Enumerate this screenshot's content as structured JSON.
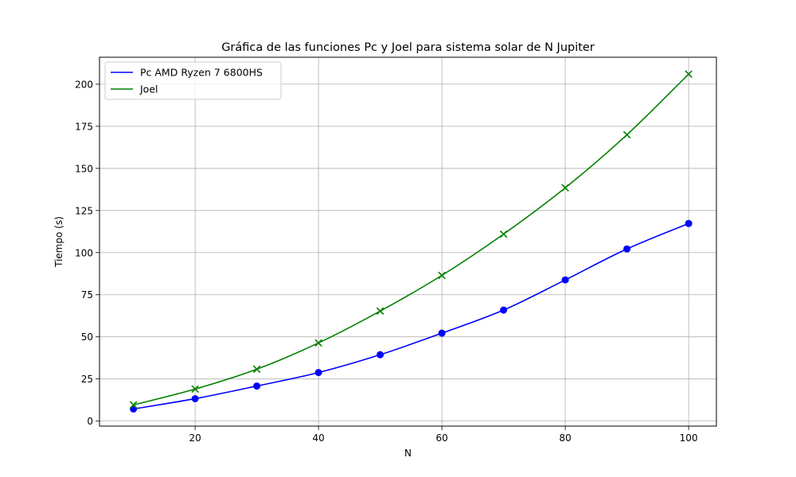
{
  "chart_data": {
    "type": "line",
    "title": "Gráfica de las funciones Pc y Joel para sistema solar de N Jupiter",
    "xlabel": "N",
    "ylabel": "Tiempo (s)",
    "xlim": [
      4.5,
      104.5
    ],
    "ylim": [
      -3,
      216
    ],
    "xticks": [
      20,
      40,
      60,
      80,
      100
    ],
    "yticks": [
      0,
      25,
      50,
      75,
      100,
      125,
      150,
      175,
      200
    ],
    "grid": true,
    "legend_position": "top-left",
    "x": [
      10,
      20,
      30,
      40,
      50,
      60,
      70,
      80,
      90,
      100
    ],
    "series": [
      {
        "name": "Pc AMD Ryzen 7 6800HS",
        "color": "#0000ff",
        "marker": "circle",
        "values": [
          7.2,
          13.3,
          20.8,
          28.8,
          39.4,
          52.2,
          65.9,
          83.8,
          102.2,
          117.3
        ]
      },
      {
        "name": "Joel",
        "color": "#008000",
        "marker": "x",
        "values": [
          9.6,
          19.0,
          30.8,
          46.4,
          65.3,
          86.5,
          111.0,
          138.5,
          170.0,
          206.0
        ]
      }
    ]
  }
}
